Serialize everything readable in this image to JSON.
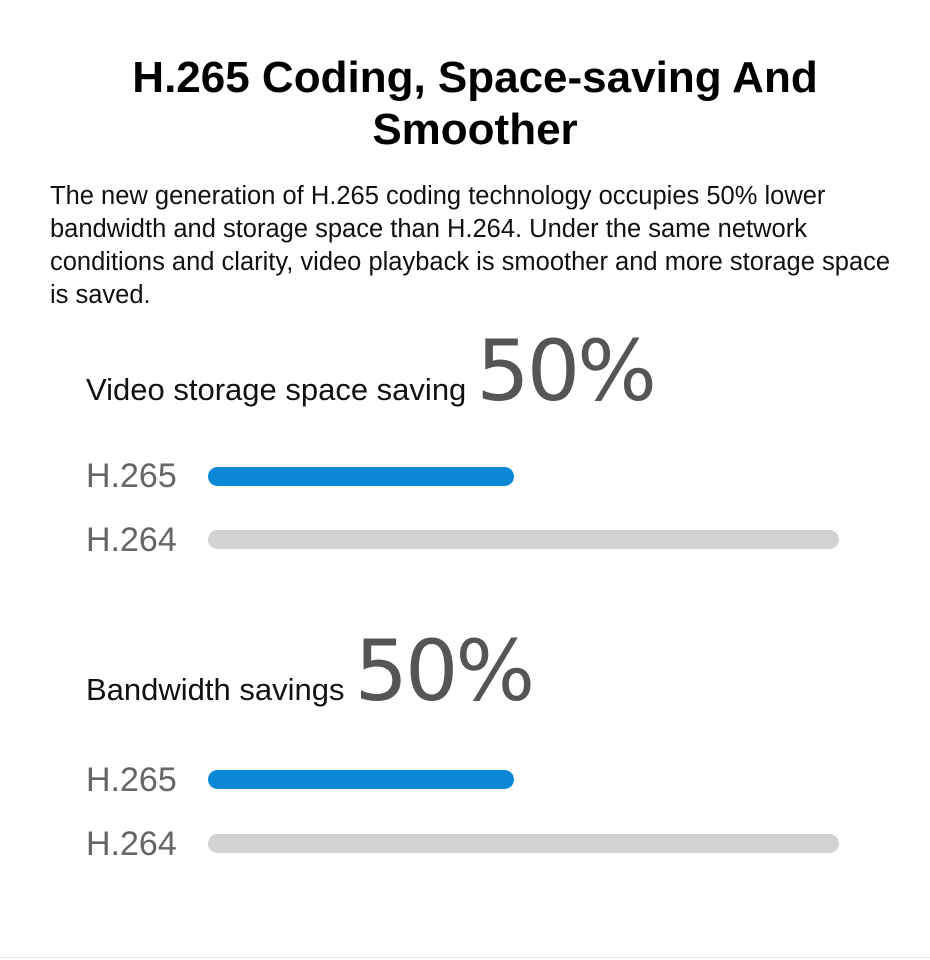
{
  "title": "H.265 Coding, Space-saving And Smoother",
  "description": "The new generation of H.265 coding technology occupies 50% lower bandwidth and storage space than H.264. Under the same network conditions and clarity, video playback is smoother and more storage space is saved.",
  "colors": {
    "h265": "#0a88d6",
    "h264": "#d2d2d2",
    "percent": "#555555"
  },
  "chart_data": [
    {
      "type": "bar",
      "orientation": "horizontal",
      "title": "Video storage space saving",
      "highlight": "50%",
      "categories": [
        "H.265",
        "H.264"
      ],
      "values": [
        0.5,
        1.0
      ],
      "xlim": [
        0,
        1
      ]
    },
    {
      "type": "bar",
      "orientation": "horizontal",
      "title": "Bandwidth savings",
      "highlight": "50%",
      "categories": [
        "H.265",
        "H.264"
      ],
      "values": [
        0.5,
        1.0
      ],
      "xlim": [
        0,
        1
      ]
    }
  ]
}
